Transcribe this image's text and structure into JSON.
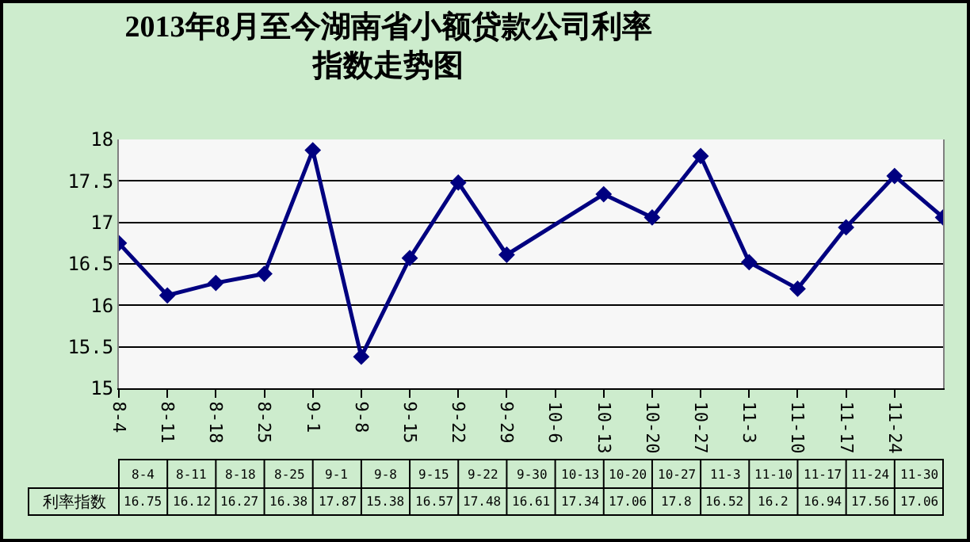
{
  "chart_data": {
    "type": "line",
    "title": "2013年8月至今湖南省小额贷款公司利率指数走势图",
    "categories": [
      "8-4",
      "8-11",
      "8-18",
      "8-25",
      "9-1",
      "9-8",
      "9-15",
      "9-22",
      "9-29",
      "10-6",
      "10-13",
      "10-20",
      "10-27",
      "11-3",
      "11-10",
      "11-17",
      "11-24",
      null
    ],
    "series": [
      {
        "name": "利率指数",
        "color": "#000080",
        "values": [
          16.75,
          16.12,
          16.27,
          16.38,
          17.87,
          15.38,
          16.57,
          17.48,
          16.61,
          null,
          17.34,
          17.06,
          17.8,
          16.52,
          16.2,
          16.94,
          17.56,
          17.06
        ]
      }
    ],
    "annotations": [
      "8-4",
      "8-11",
      "8-18",
      "8-25",
      "9-1",
      "9-8",
      "9-15",
      "9-22",
      "9-30",
      "10-13",
      "10-20",
      "10-27",
      "11-3",
      "11-10",
      "11-17",
      "11-24",
      "11-30",
      "16.75",
      "16.12",
      "16.27",
      "16.38",
      "17.87",
      "15.38",
      "16.57",
      "17.48",
      "16.61",
      "17.34",
      "17.06",
      "17.8",
      "16.52",
      "16.2",
      "16.94",
      "17.56",
      "17.06"
    ],
    "ylim": [
      15,
      18
    ],
    "yticks": [
      15,
      15.5,
      16,
      16.5,
      17,
      17.5,
      18
    ],
    "grid": "y",
    "marker": "diamond",
    "line_style": "solid",
    "legend": false
  }
}
